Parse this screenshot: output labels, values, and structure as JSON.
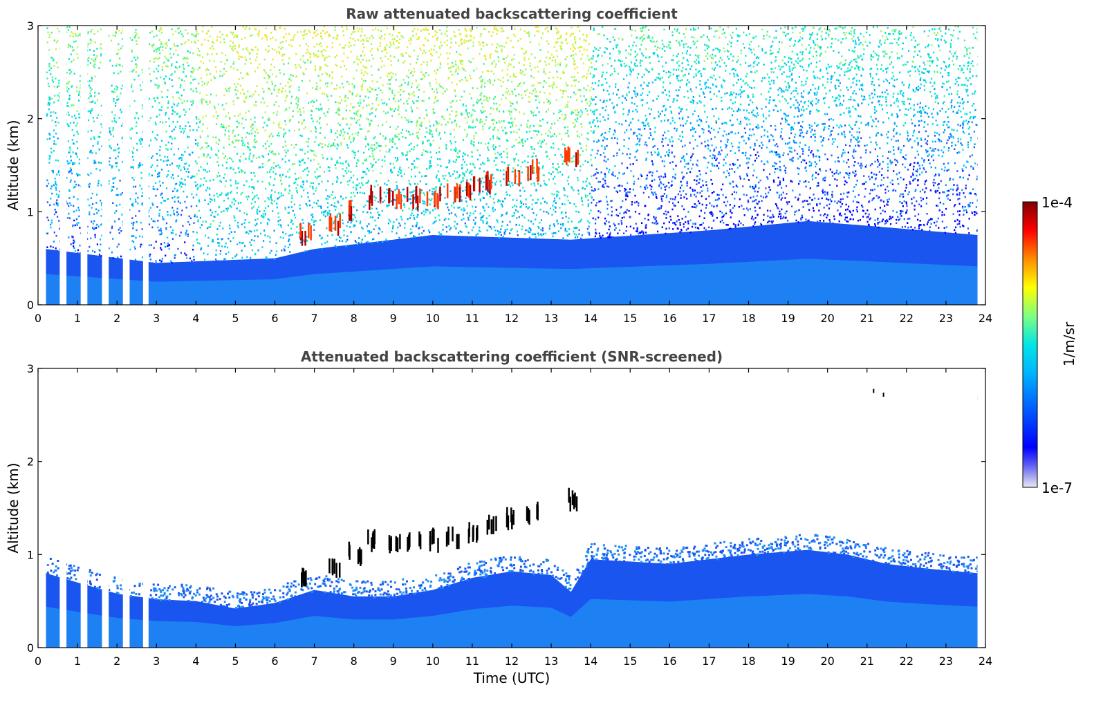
{
  "chart_data": [
    {
      "type": "heatmap",
      "title": "Raw attenuated backscattering coefficient",
      "xlabel": "",
      "ylabel": "Altitude (km)",
      "xlim": [
        0,
        24
      ],
      "ylim": [
        0,
        3
      ],
      "x_ticks": [
        "0",
        "1",
        "2",
        "3",
        "4",
        "5",
        "6",
        "7",
        "8",
        "9",
        "10",
        "11",
        "12",
        "13",
        "14",
        "15",
        "16",
        "17",
        "18",
        "19",
        "20",
        "21",
        "22",
        "23",
        "24"
      ],
      "y_ticks": [
        "0",
        "1",
        "2",
        "3"
      ],
      "data_range_x": [
        0.2,
        23.8
      ],
      "missing_data_gaps_hours": [
        [
          0.55,
          0.72
        ],
        [
          1.08,
          1.25
        ],
        [
          1.62,
          1.79
        ],
        [
          2.15,
          2.32
        ],
        [
          2.66,
          2.8
        ]
      ],
      "boundary_layer_top_km": [
        [
          0.2,
          0.6
        ],
        [
          3,
          0.45
        ],
        [
          6,
          0.5
        ],
        [
          7,
          0.6
        ],
        [
          10,
          0.75
        ],
        [
          13.5,
          0.7
        ],
        [
          17,
          0.8
        ],
        [
          19.5,
          0.9
        ],
        [
          21,
          0.85
        ],
        [
          23.8,
          0.75
        ]
      ],
      "cloud_layer": [
        [
          6.8,
          0.75
        ],
        [
          7.5,
          0.85
        ],
        [
          8,
          1.0
        ],
        [
          8.5,
          1.15
        ],
        [
          9,
          1.12
        ],
        [
          9.5,
          1.15
        ],
        [
          10,
          1.15
        ],
        [
          10.5,
          1.2
        ],
        [
          11,
          1.25
        ],
        [
          11.5,
          1.3
        ],
        [
          12,
          1.4
        ],
        [
          12.5,
          1.45
        ],
        [
          13.5,
          1.6
        ]
      ],
      "colorbar": {
        "label": "1/m/sr",
        "min_label": "1e-7",
        "max_label": "1e-4",
        "scale": "log"
      }
    },
    {
      "type": "heatmap",
      "title": "Attenuated backscattering coefficient (SNR-screened)",
      "xlabel": "Time (UTC)",
      "ylabel": "Altitude (km)",
      "xlim": [
        0,
        24
      ],
      "ylim": [
        0,
        3
      ],
      "x_ticks": [
        "0",
        "1",
        "2",
        "3",
        "4",
        "5",
        "6",
        "7",
        "8",
        "9",
        "10",
        "11",
        "12",
        "13",
        "14",
        "15",
        "16",
        "17",
        "18",
        "19",
        "20",
        "21",
        "22",
        "23",
        "24"
      ],
      "y_ticks": [
        "0",
        "1",
        "2",
        "3"
      ],
      "data_range_x": [
        0.2,
        23.8
      ],
      "missing_data_gaps_hours": [
        [
          0.55,
          0.72
        ],
        [
          1.08,
          1.25
        ],
        [
          1.62,
          1.79
        ],
        [
          2.15,
          2.32
        ],
        [
          2.66,
          2.8
        ]
      ],
      "signal_top_km": [
        [
          0.2,
          0.8
        ],
        [
          1,
          0.7
        ],
        [
          2,
          0.58
        ],
        [
          3,
          0.52
        ],
        [
          4,
          0.5
        ],
        [
          5,
          0.42
        ],
        [
          6,
          0.48
        ],
        [
          7,
          0.62
        ],
        [
          8,
          0.55
        ],
        [
          9,
          0.55
        ],
        [
          10,
          0.62
        ],
        [
          11,
          0.75
        ],
        [
          12,
          0.82
        ],
        [
          13,
          0.78
        ],
        [
          13.5,
          0.6
        ],
        [
          14,
          0.95
        ],
        [
          16,
          0.9
        ],
        [
          18,
          1.0
        ],
        [
          19.5,
          1.05
        ],
        [
          20.5,
          1.0
        ],
        [
          21.5,
          0.9
        ],
        [
          22.5,
          0.85
        ],
        [
          23.8,
          0.8
        ]
      ],
      "cloud_layer": [
        [
          6.8,
          0.75
        ],
        [
          7.5,
          0.85
        ],
        [
          8,
          1.0
        ],
        [
          8.5,
          1.15
        ],
        [
          9,
          1.12
        ],
        [
          9.5,
          1.15
        ],
        [
          10,
          1.15
        ],
        [
          10.5,
          1.2
        ],
        [
          11,
          1.25
        ],
        [
          11.5,
          1.3
        ],
        [
          12,
          1.4
        ],
        [
          12.5,
          1.45
        ],
        [
          13.5,
          1.6
        ]
      ],
      "isolated_points": [
        [
          21.15,
          2.78
        ],
        [
          21.4,
          2.74
        ],
        [
          23.8,
          2.7
        ]
      ]
    }
  ],
  "colors": {
    "jet": [
      "#00007f",
      "#0000ff",
      "#007fff",
      "#00ffff",
      "#7fff7f",
      "#ffff00",
      "#ff7f00",
      "#ff0000",
      "#7f0000"
    ],
    "title_color": "#444444"
  }
}
